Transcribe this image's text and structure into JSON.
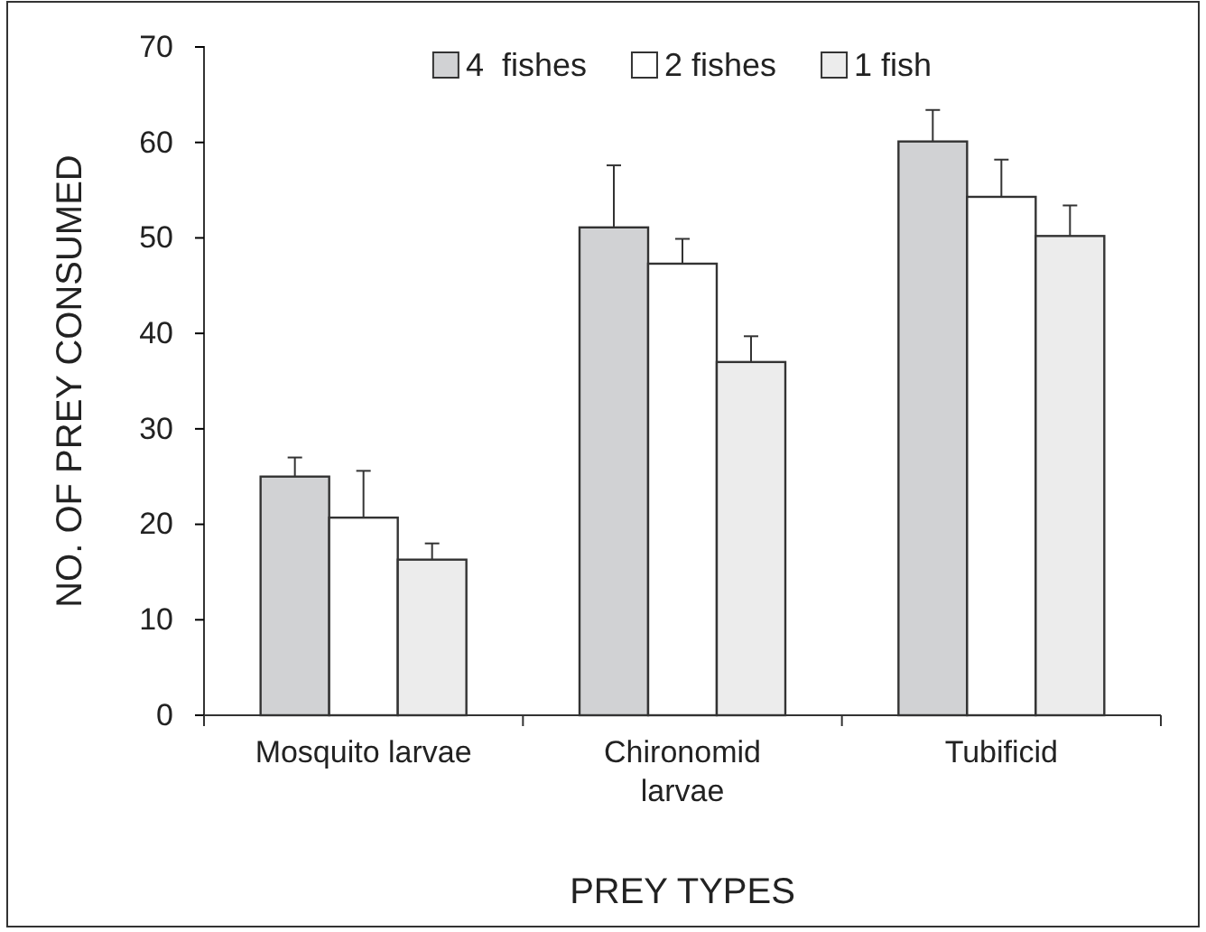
{
  "chart_data": {
    "type": "bar",
    "xlabel": "PREY TYPES",
    "ylabel": "NO. OF PREY CONSUMED",
    "categories": [
      "Mosquito larvae",
      "Chironomid larvae",
      "Tubificid"
    ],
    "series": [
      {
        "name": "4  fishes",
        "color": "#d1d2d4",
        "values": [
          25,
          51.1,
          60.1
        ],
        "errors": [
          [
            25,
            27
          ],
          [
            51.1,
            57.6
          ],
          [
            60.1,
            63.4
          ]
        ]
      },
      {
        "name": "2 fishes",
        "color": "#ffffff",
        "values": [
          20.7,
          47.3,
          54.3
        ],
        "errors": [
          [
            20.7,
            25.6
          ],
          [
            47.3,
            49.9
          ],
          [
            54.3,
            58.2
          ]
        ]
      },
      {
        "name": "1 fish",
        "color": "#ececec",
        "values": [
          16.3,
          37,
          50.2
        ],
        "errors": [
          [
            16.3,
            18
          ],
          [
            37,
            39.7
          ],
          [
            50.2,
            53.4
          ]
        ]
      }
    ],
    "ylim": [
      0,
      70
    ],
    "yticks": [
      0,
      10,
      20,
      30,
      40,
      50,
      60,
      70
    ],
    "grid": false,
    "legend": "top"
  }
}
